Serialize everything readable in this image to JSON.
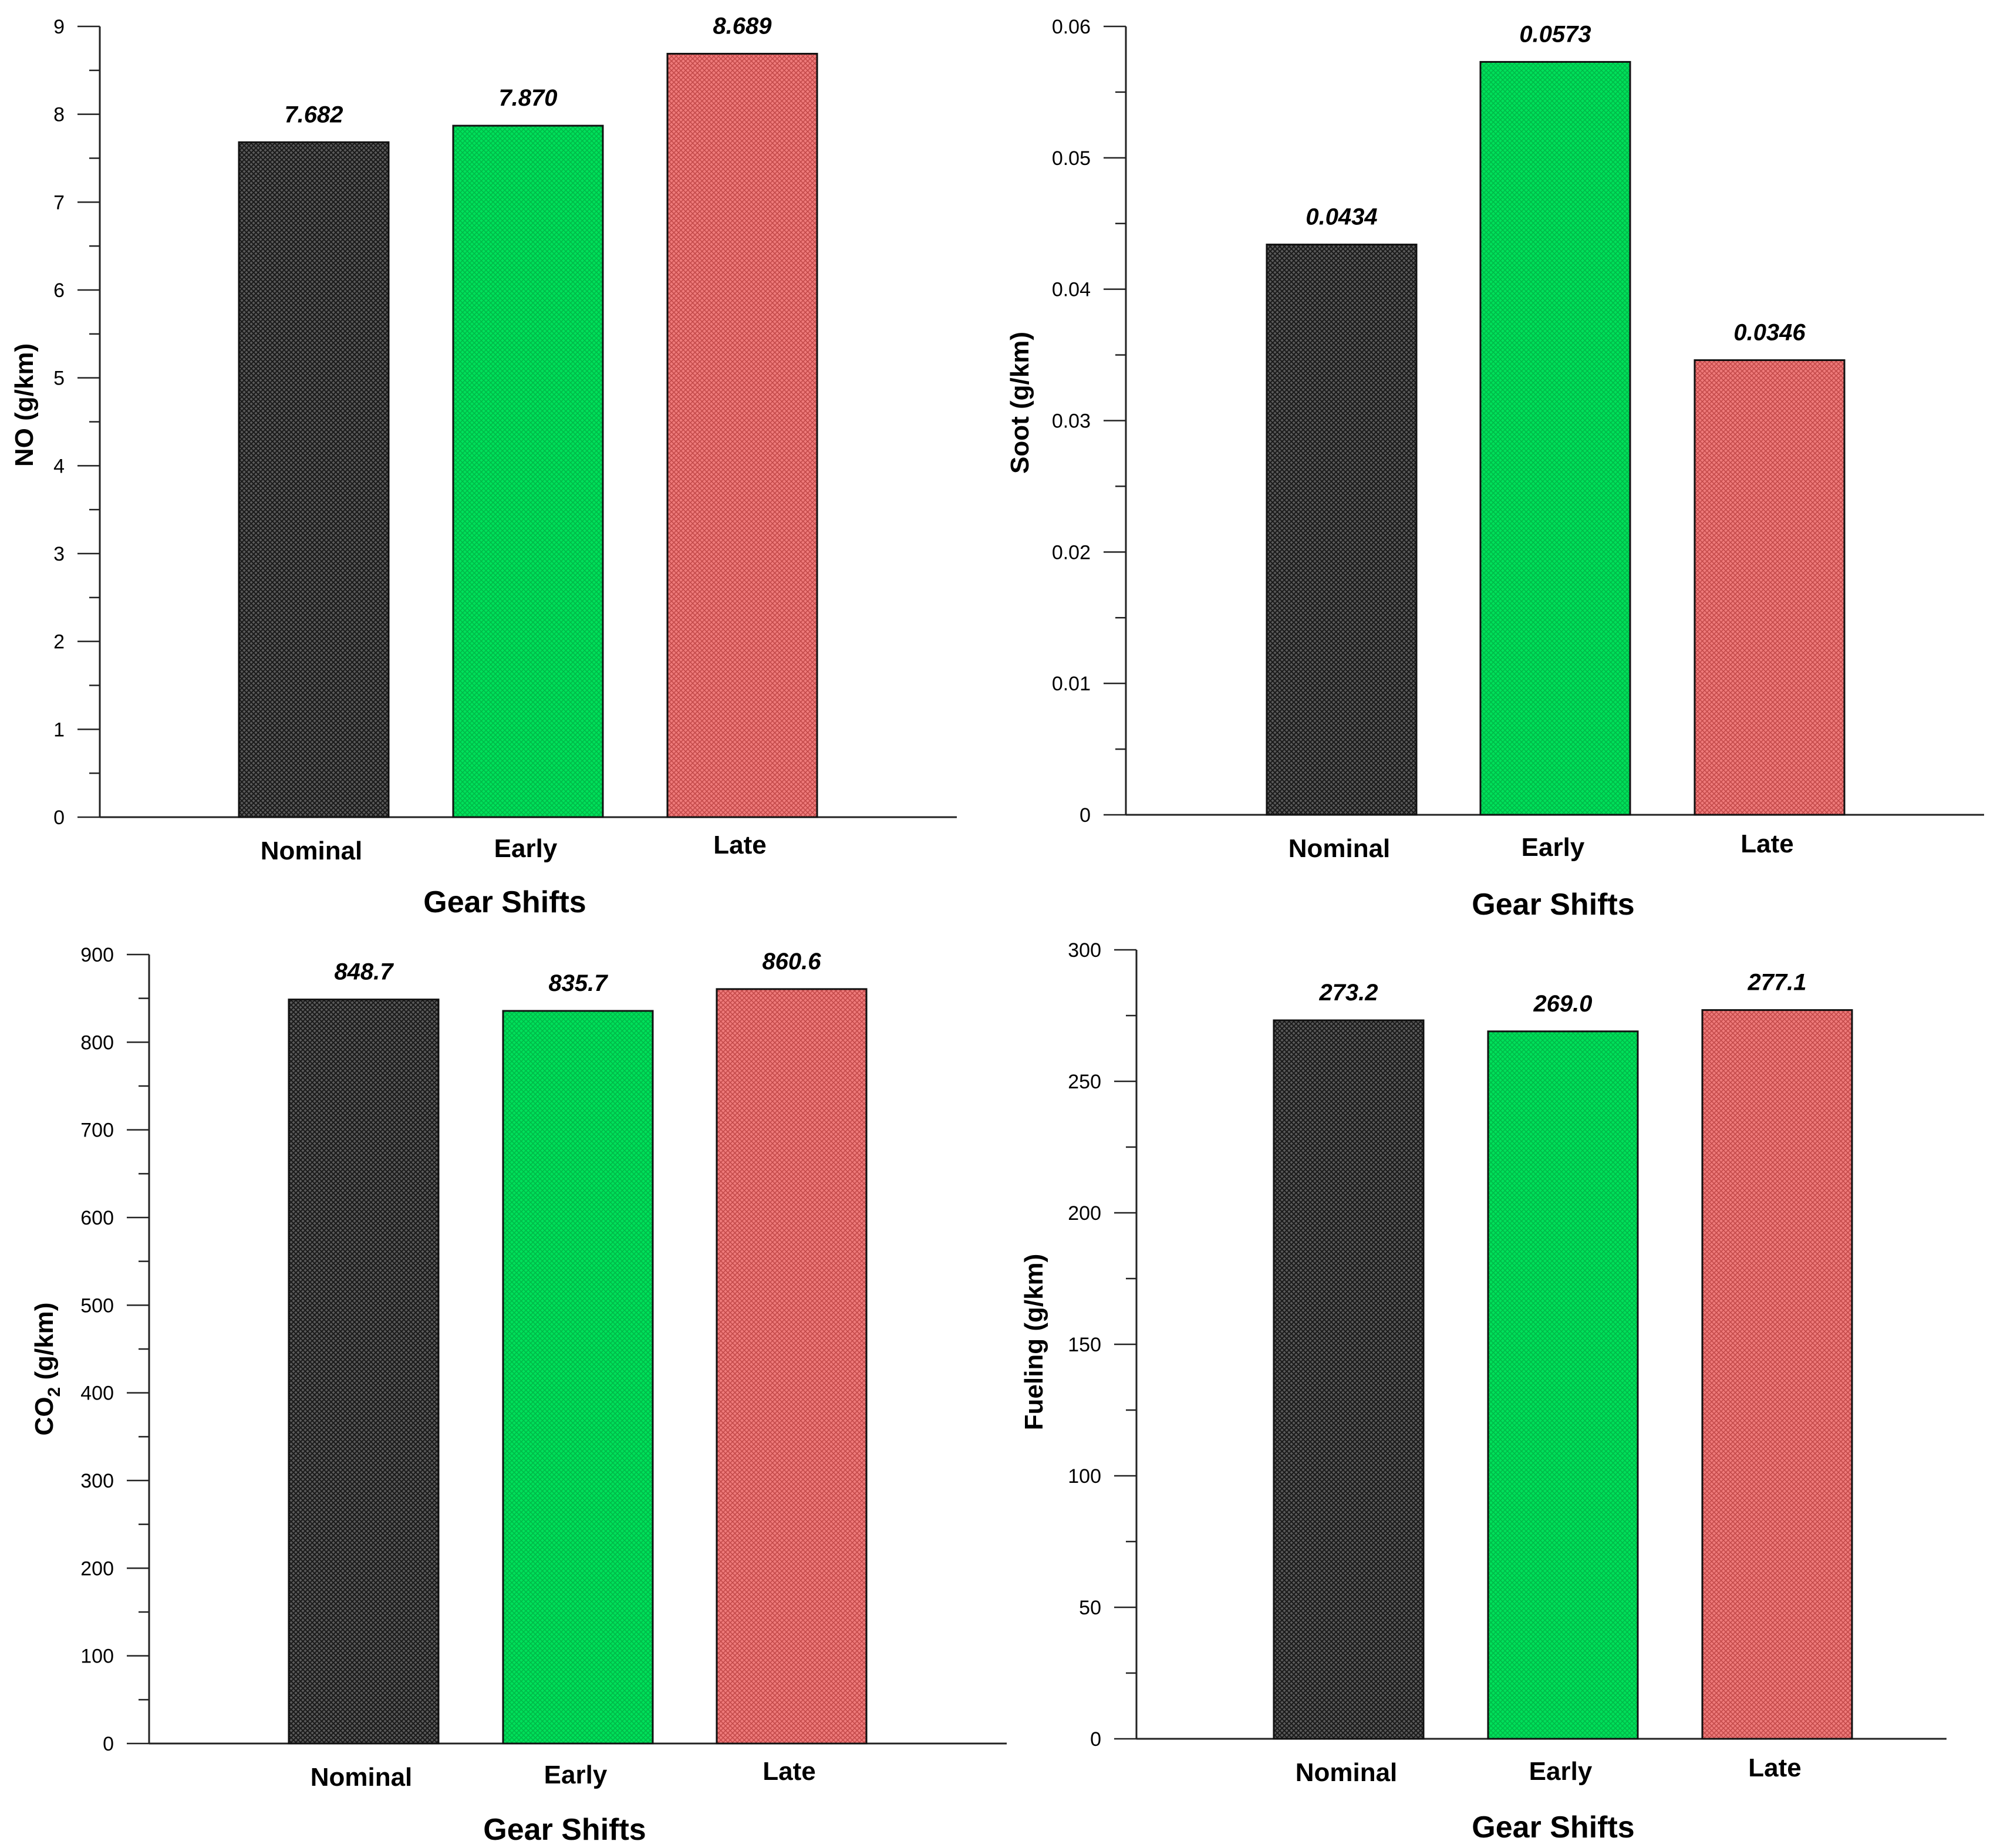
{
  "colors": {
    "nominal": "#3a3a3a",
    "early": "#00e05a",
    "late": "#e86a6a",
    "axis": "#222222"
  },
  "chart_data": [
    {
      "type": "bar",
      "categories": [
        "Nominal",
        "Early",
        "Late"
      ],
      "values": [
        7.682,
        7.87,
        8.689
      ],
      "value_labels": [
        "7.682",
        "7.870",
        "8.689"
      ],
      "xlabel": "Gear Shifts",
      "ylabel": "NO (g/km)",
      "ylim": [
        0,
        9
      ],
      "major_ticks": [
        0,
        1,
        2,
        3,
        4,
        5,
        6,
        7,
        8,
        9
      ],
      "tick_labels": [
        "0",
        "1",
        "2",
        "3",
        "4",
        "5",
        "6",
        "7",
        "8",
        "9"
      ],
      "grid": false
    },
    {
      "type": "bar",
      "categories": [
        "Nominal",
        "Early",
        "Late"
      ],
      "values": [
        0.0434,
        0.0573,
        0.0346
      ],
      "value_labels": [
        "0.0434",
        "0.0573",
        "0.0346"
      ],
      "xlabel": "Gear Shifts",
      "ylabel": "Soot (g/km)",
      "ylim": [
        0,
        0.06
      ],
      "major_ticks": [
        0,
        0.01,
        0.02,
        0.03,
        0.04,
        0.05,
        0.06
      ],
      "tick_labels": [
        "0",
        "0.01",
        "0.02",
        "0.03",
        "0.04",
        "0.05",
        "0.06"
      ],
      "grid": false
    },
    {
      "type": "bar",
      "categories": [
        "Nominal",
        "Early",
        "Late"
      ],
      "values": [
        848.7,
        835.7,
        860.6
      ],
      "value_labels": [
        "848.7",
        "835.7",
        "860.6"
      ],
      "xlabel": "Gear Shifts",
      "ylabel": "CO",
      "ylabel_sub": "2",
      "ylabel_suffix": " (g/km)",
      "ylim": [
        0,
        900
      ],
      "major_ticks": [
        0,
        100,
        200,
        300,
        400,
        500,
        600,
        700,
        800,
        900
      ],
      "tick_labels": [
        "0",
        "100",
        "200",
        "300",
        "400",
        "500",
        "600",
        "700",
        "800",
        "900"
      ],
      "grid": false
    },
    {
      "type": "bar",
      "categories": [
        "Nominal",
        "Early",
        "Late"
      ],
      "values": [
        273.2,
        269.0,
        277.1
      ],
      "value_labels": [
        "273.2",
        "269.0",
        "277.1"
      ],
      "xlabel": "Gear Shifts",
      "ylabel": "Fueling (g/km)",
      "ylim": [
        0,
        300
      ],
      "major_ticks": [
        0,
        50,
        100,
        150,
        200,
        250,
        300
      ],
      "tick_labels": [
        "0",
        "50",
        "100",
        "150",
        "200",
        "250",
        "300"
      ],
      "grid": false
    }
  ]
}
